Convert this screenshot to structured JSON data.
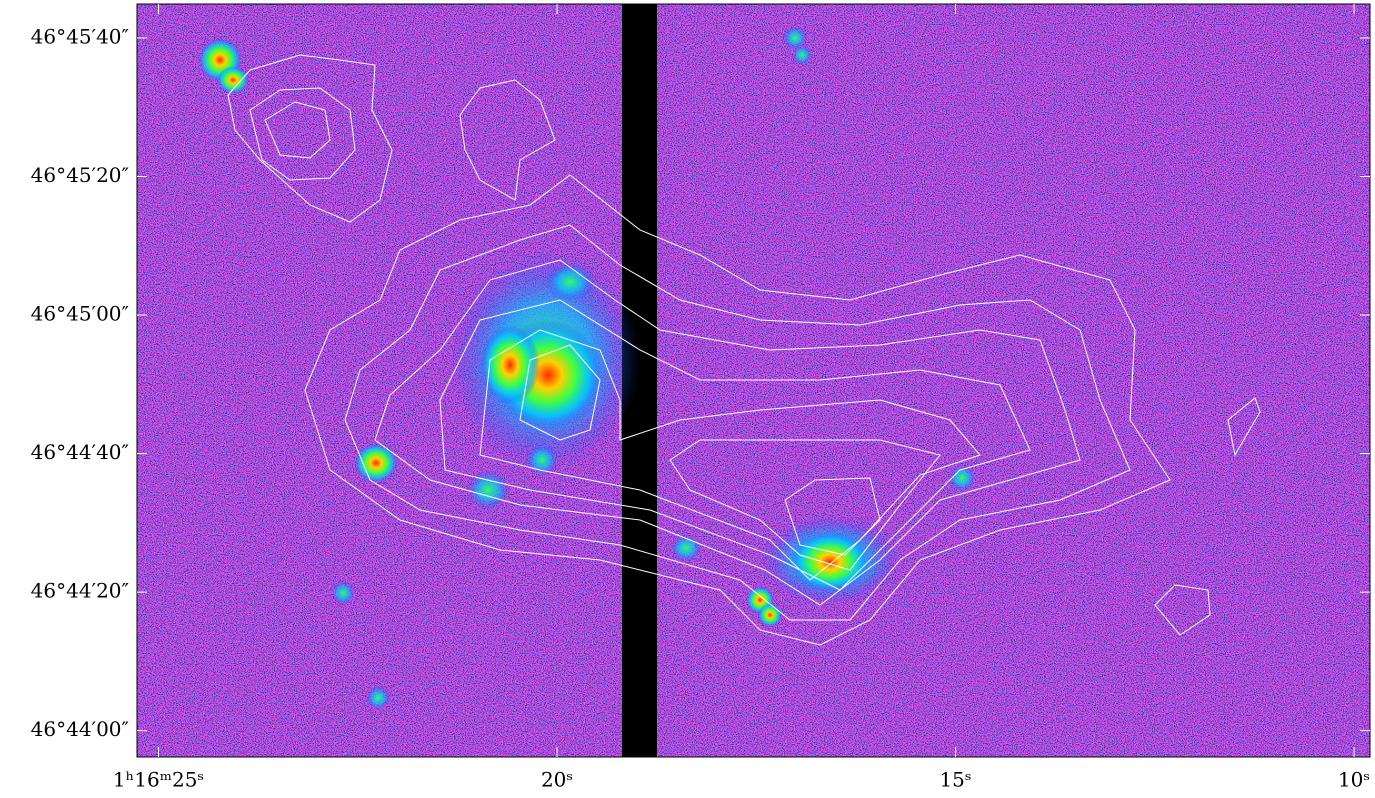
{
  "chart_data": {
    "type": "image",
    "xlim": [
      25.27,
      9.8
    ],
    "ylim": [
      168236.2,
      168344.9
    ],
    "xticks": [
      {
        "value": 25,
        "label": "1ʰ16ᵐ25ˢ"
      },
      {
        "value": 20,
        "label": "20ˢ"
      },
      {
        "value": 15,
        "label": "15ˢ"
      },
      {
        "value": 10,
        "label": "10ˢ"
      }
    ],
    "yticks": [
      {
        "value": 168240,
        "label": "46°44′00″"
      },
      {
        "value": 168260,
        "label": "46°44′20″"
      },
      {
        "value": 168280,
        "label": "46°44′40″"
      },
      {
        "value": 168300,
        "label": "46°45′00″"
      },
      {
        "value": 168320,
        "label": "46°45′20″"
      },
      {
        "value": 168340,
        "label": "46°45′40″"
      }
    ]
  }
}
